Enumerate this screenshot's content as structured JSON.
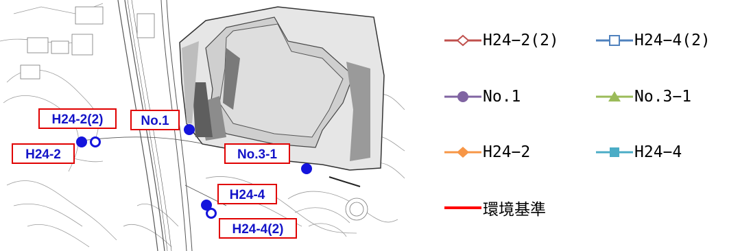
{
  "map": {
    "labels": {
      "h24_2_2": "H24-2(2)",
      "no_1": "No.1",
      "h24_2": "H24-2",
      "no_3_1": "No.3-1",
      "h24_4": "H24-4",
      "h24_4_2": "H24-4(2)"
    },
    "colors": {
      "label_border": "#e00000",
      "label_text": "#1414c8",
      "point": "#1414dc"
    }
  },
  "legend": {
    "items": [
      {
        "label": "H24−2(2)",
        "color": "#c0504d",
        "marker": "diamond-open"
      },
      {
        "label": "H24−4(2)",
        "color": "#4f81bd",
        "marker": "square-open"
      },
      {
        "label": "No.1",
        "color": "#8064a2",
        "marker": "circle"
      },
      {
        "label": "No.3−1",
        "color": "#9bbb59",
        "marker": "triangle"
      },
      {
        "label": "H24−2",
        "color": "#f79646",
        "marker": "diamond"
      },
      {
        "label": "H24−4",
        "color": "#4bacc6",
        "marker": "square"
      },
      {
        "label": "環境基準",
        "color": "#ff0000",
        "marker": "none"
      }
    ]
  }
}
